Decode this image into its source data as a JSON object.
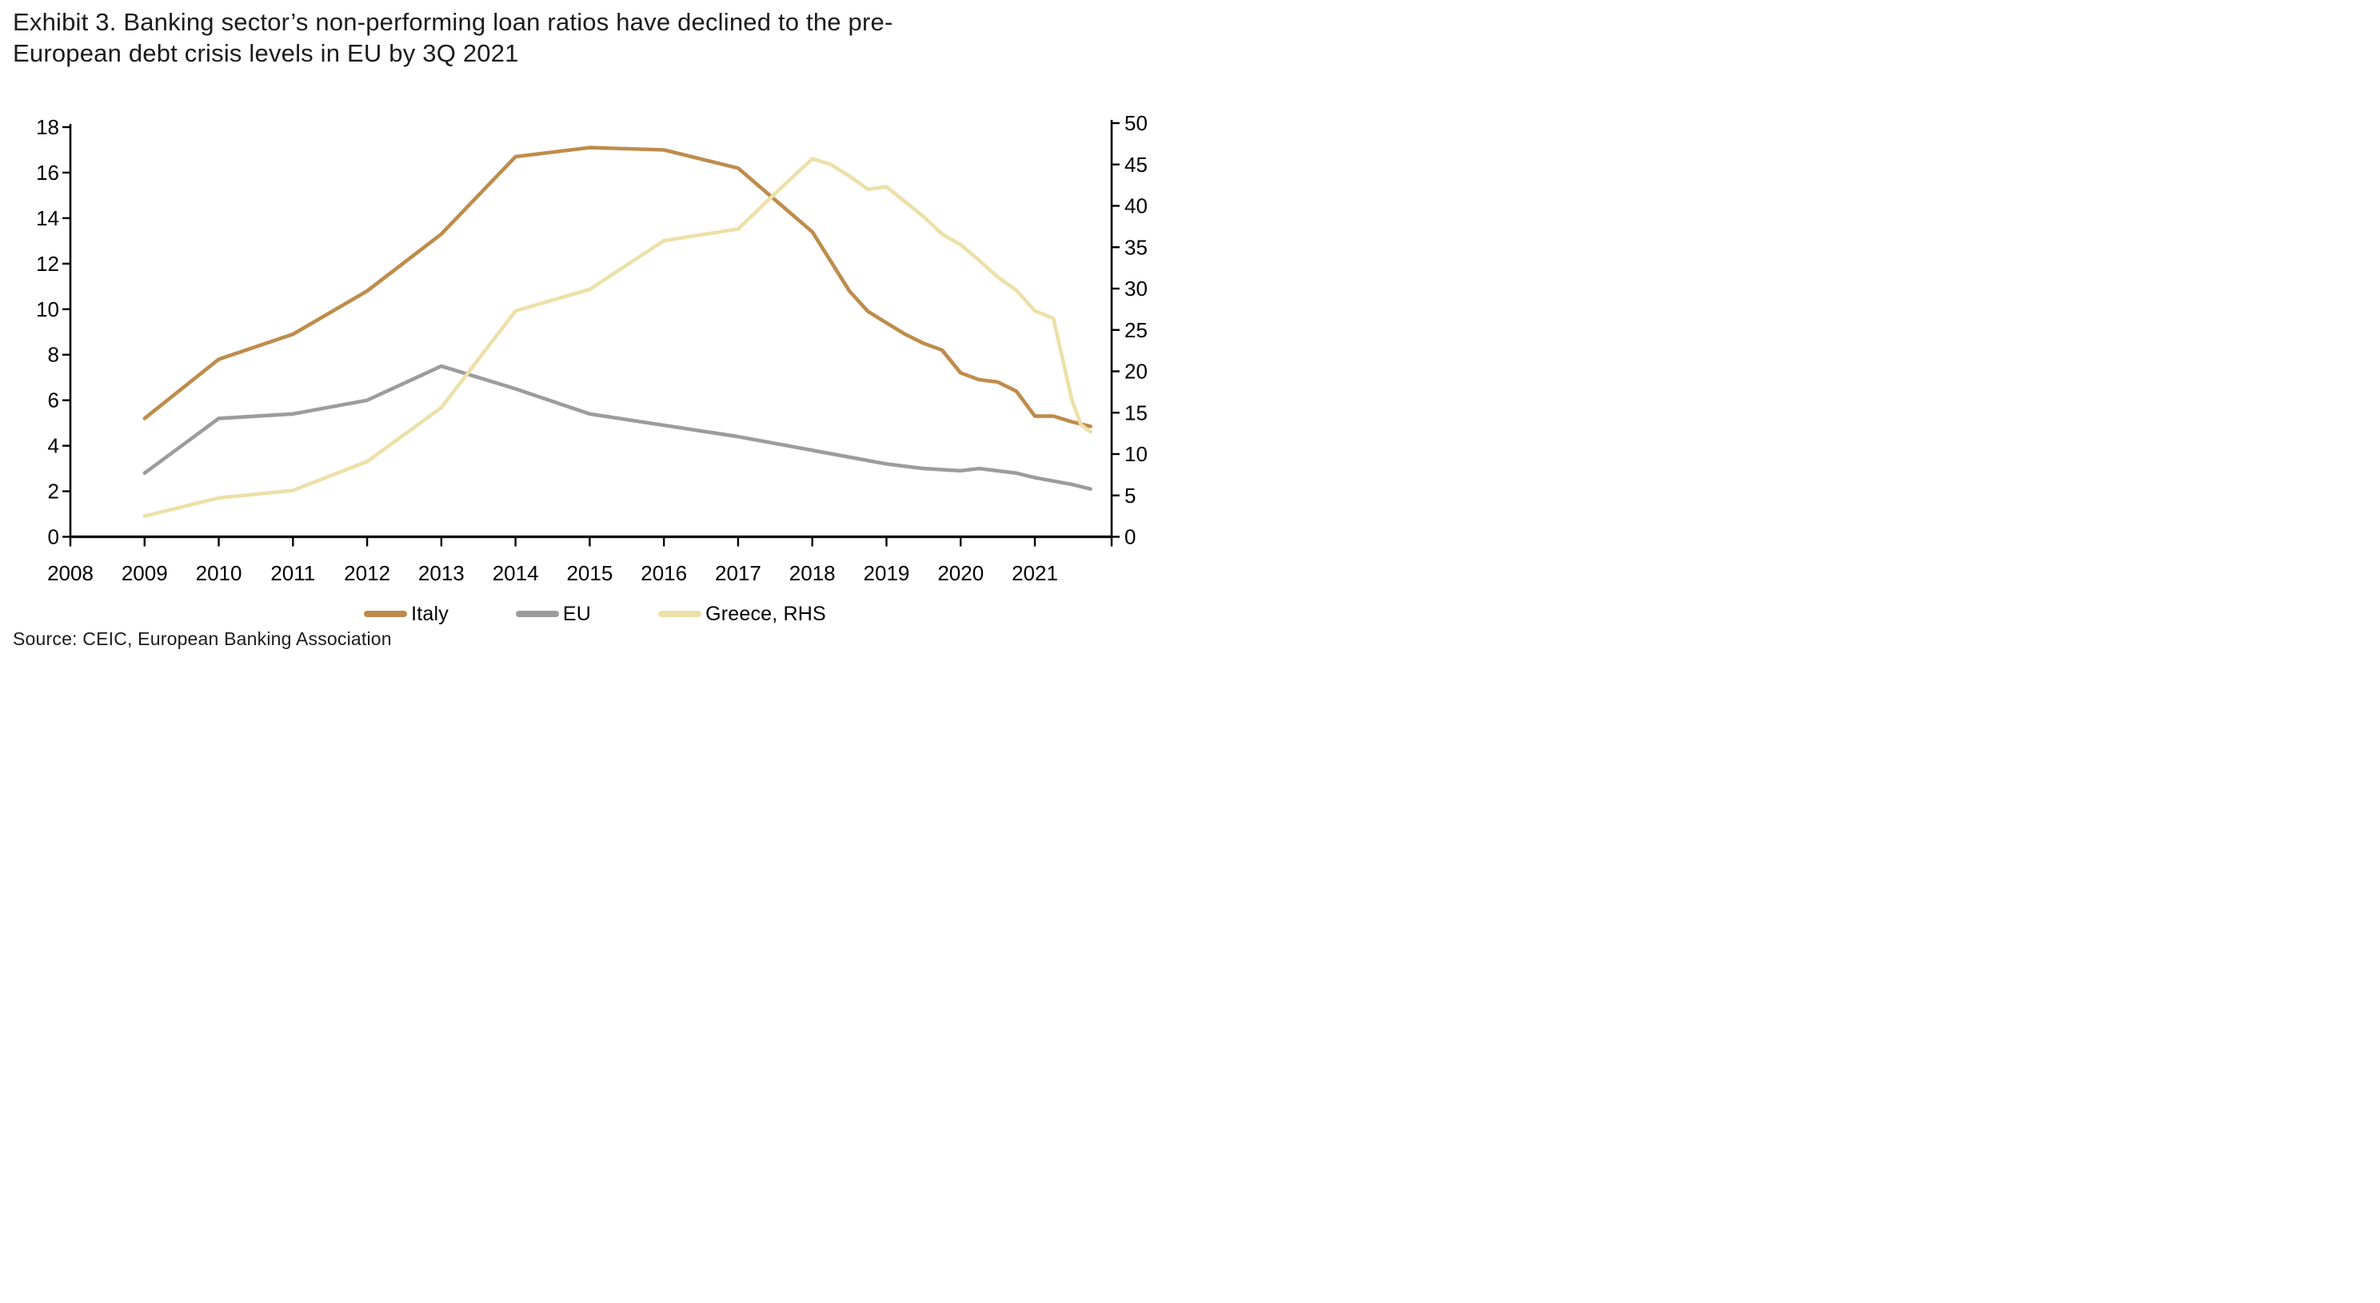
{
  "title": {
    "line1": "Exhibit 3. Banking sector’s non-performing loan ratios have declined to the pre-",
    "line2": "European debt crisis levels in EU by 3Q 2021"
  },
  "source": "Source: CEIC, European Banking Association",
  "legend": [
    {
      "label": "Italy",
      "series": "Italy"
    },
    {
      "label": "EU",
      "series": "EU"
    },
    {
      "label": "Greece, RHS",
      "series": "Greece, RHS"
    }
  ],
  "chart_data": {
    "type": "line",
    "title": "Exhibit 3. Banking sector’s non-performing loan ratios have declined to the pre-European debt crisis levels in EU by 3Q 2021",
    "xlabel": "",
    "ylabel_left": "",
    "ylabel_right": "",
    "x_tick_labels": [
      "2008",
      "2009",
      "2010",
      "2011",
      "2012",
      "2013",
      "2014",
      "2015",
      "2016",
      "2017",
      "2018",
      "2019",
      "2020",
      "2021"
    ],
    "x_range": [
      2008,
      2022.05
    ],
    "left_axis": {
      "min": 0,
      "max": 18,
      "ticks": [
        0,
        2,
        4,
        6,
        8,
        10,
        12,
        14,
        16,
        18
      ]
    },
    "right_axis": {
      "min": 0,
      "max": 50,
      "ticks": [
        0,
        5,
        10,
        15,
        20,
        25,
        30,
        35,
        40,
        45,
        50
      ]
    },
    "grid": false,
    "legend_position": "bottom",
    "series": [
      {
        "name": "EU",
        "axis": "left",
        "color": "#9C9C9E",
        "points": [
          [
            2009,
            2.8
          ],
          [
            2010,
            5.2
          ],
          [
            2011,
            5.4
          ],
          [
            2012,
            6.0
          ],
          [
            2013,
            7.5
          ],
          [
            2014,
            6.5
          ],
          [
            2015,
            5.4
          ],
          [
            2016,
            4.9
          ],
          [
            2017,
            4.4
          ],
          [
            2018,
            3.8
          ],
          [
            2019,
            3.2
          ],
          [
            2019.5,
            3.0
          ],
          [
            2020,
            2.9
          ],
          [
            2020.25,
            3.0
          ],
          [
            2020.75,
            2.8
          ],
          [
            2021,
            2.6
          ],
          [
            2021.5,
            2.3
          ],
          [
            2021.75,
            2.1
          ]
        ]
      },
      {
        "name": "Italy",
        "axis": "left",
        "color": "#BE8C4B",
        "points": [
          [
            2009,
            5.2
          ],
          [
            2010,
            7.8
          ],
          [
            2011,
            8.9
          ],
          [
            2012,
            10.8
          ],
          [
            2013,
            13.3
          ],
          [
            2014,
            16.7
          ],
          [
            2015,
            17.1
          ],
          [
            2016,
            17.0
          ],
          [
            2017,
            16.2
          ],
          [
            2018,
            13.4
          ],
          [
            2018.25,
            12.1
          ],
          [
            2018.5,
            10.8
          ],
          [
            2018.75,
            9.9
          ],
          [
            2019,
            9.4
          ],
          [
            2019.25,
            8.9
          ],
          [
            2019.5,
            8.5
          ],
          [
            2019.75,
            8.2
          ],
          [
            2020,
            7.2
          ],
          [
            2020.25,
            6.9
          ],
          [
            2020.5,
            6.8
          ],
          [
            2020.75,
            6.4
          ],
          [
            2021,
            5.3
          ],
          [
            2021.25,
            5.3
          ],
          [
            2021.5,
            5.05
          ],
          [
            2021.75,
            4.85
          ]
        ]
      },
      {
        "name": "Greece, RHS",
        "axis": "right",
        "color": "#EDE0A8",
        "points": [
          [
            2009,
            2.5
          ],
          [
            2010,
            4.7
          ],
          [
            2011,
            5.6
          ],
          [
            2012,
            9.1
          ],
          [
            2013,
            15.6
          ],
          [
            2014,
            27.3
          ],
          [
            2015,
            29.9
          ],
          [
            2016,
            35.8
          ],
          [
            2017,
            37.2
          ],
          [
            2017.5,
            41.5
          ],
          [
            2018,
            45.7
          ],
          [
            2018.25,
            45.0
          ],
          [
            2018.5,
            43.6
          ],
          [
            2018.75,
            42.0
          ],
          [
            2019,
            42.3
          ],
          [
            2019.5,
            38.7
          ],
          [
            2019.75,
            36.6
          ],
          [
            2020,
            35.3
          ],
          [
            2020.25,
            33.4
          ],
          [
            2020.5,
            31.4
          ],
          [
            2020.75,
            29.8
          ],
          [
            2021,
            27.3
          ],
          [
            2021.25,
            26.4
          ],
          [
            2021.5,
            16.5
          ],
          [
            2021.625,
            13.5
          ],
          [
            2021.75,
            12.7
          ]
        ]
      }
    ]
  }
}
